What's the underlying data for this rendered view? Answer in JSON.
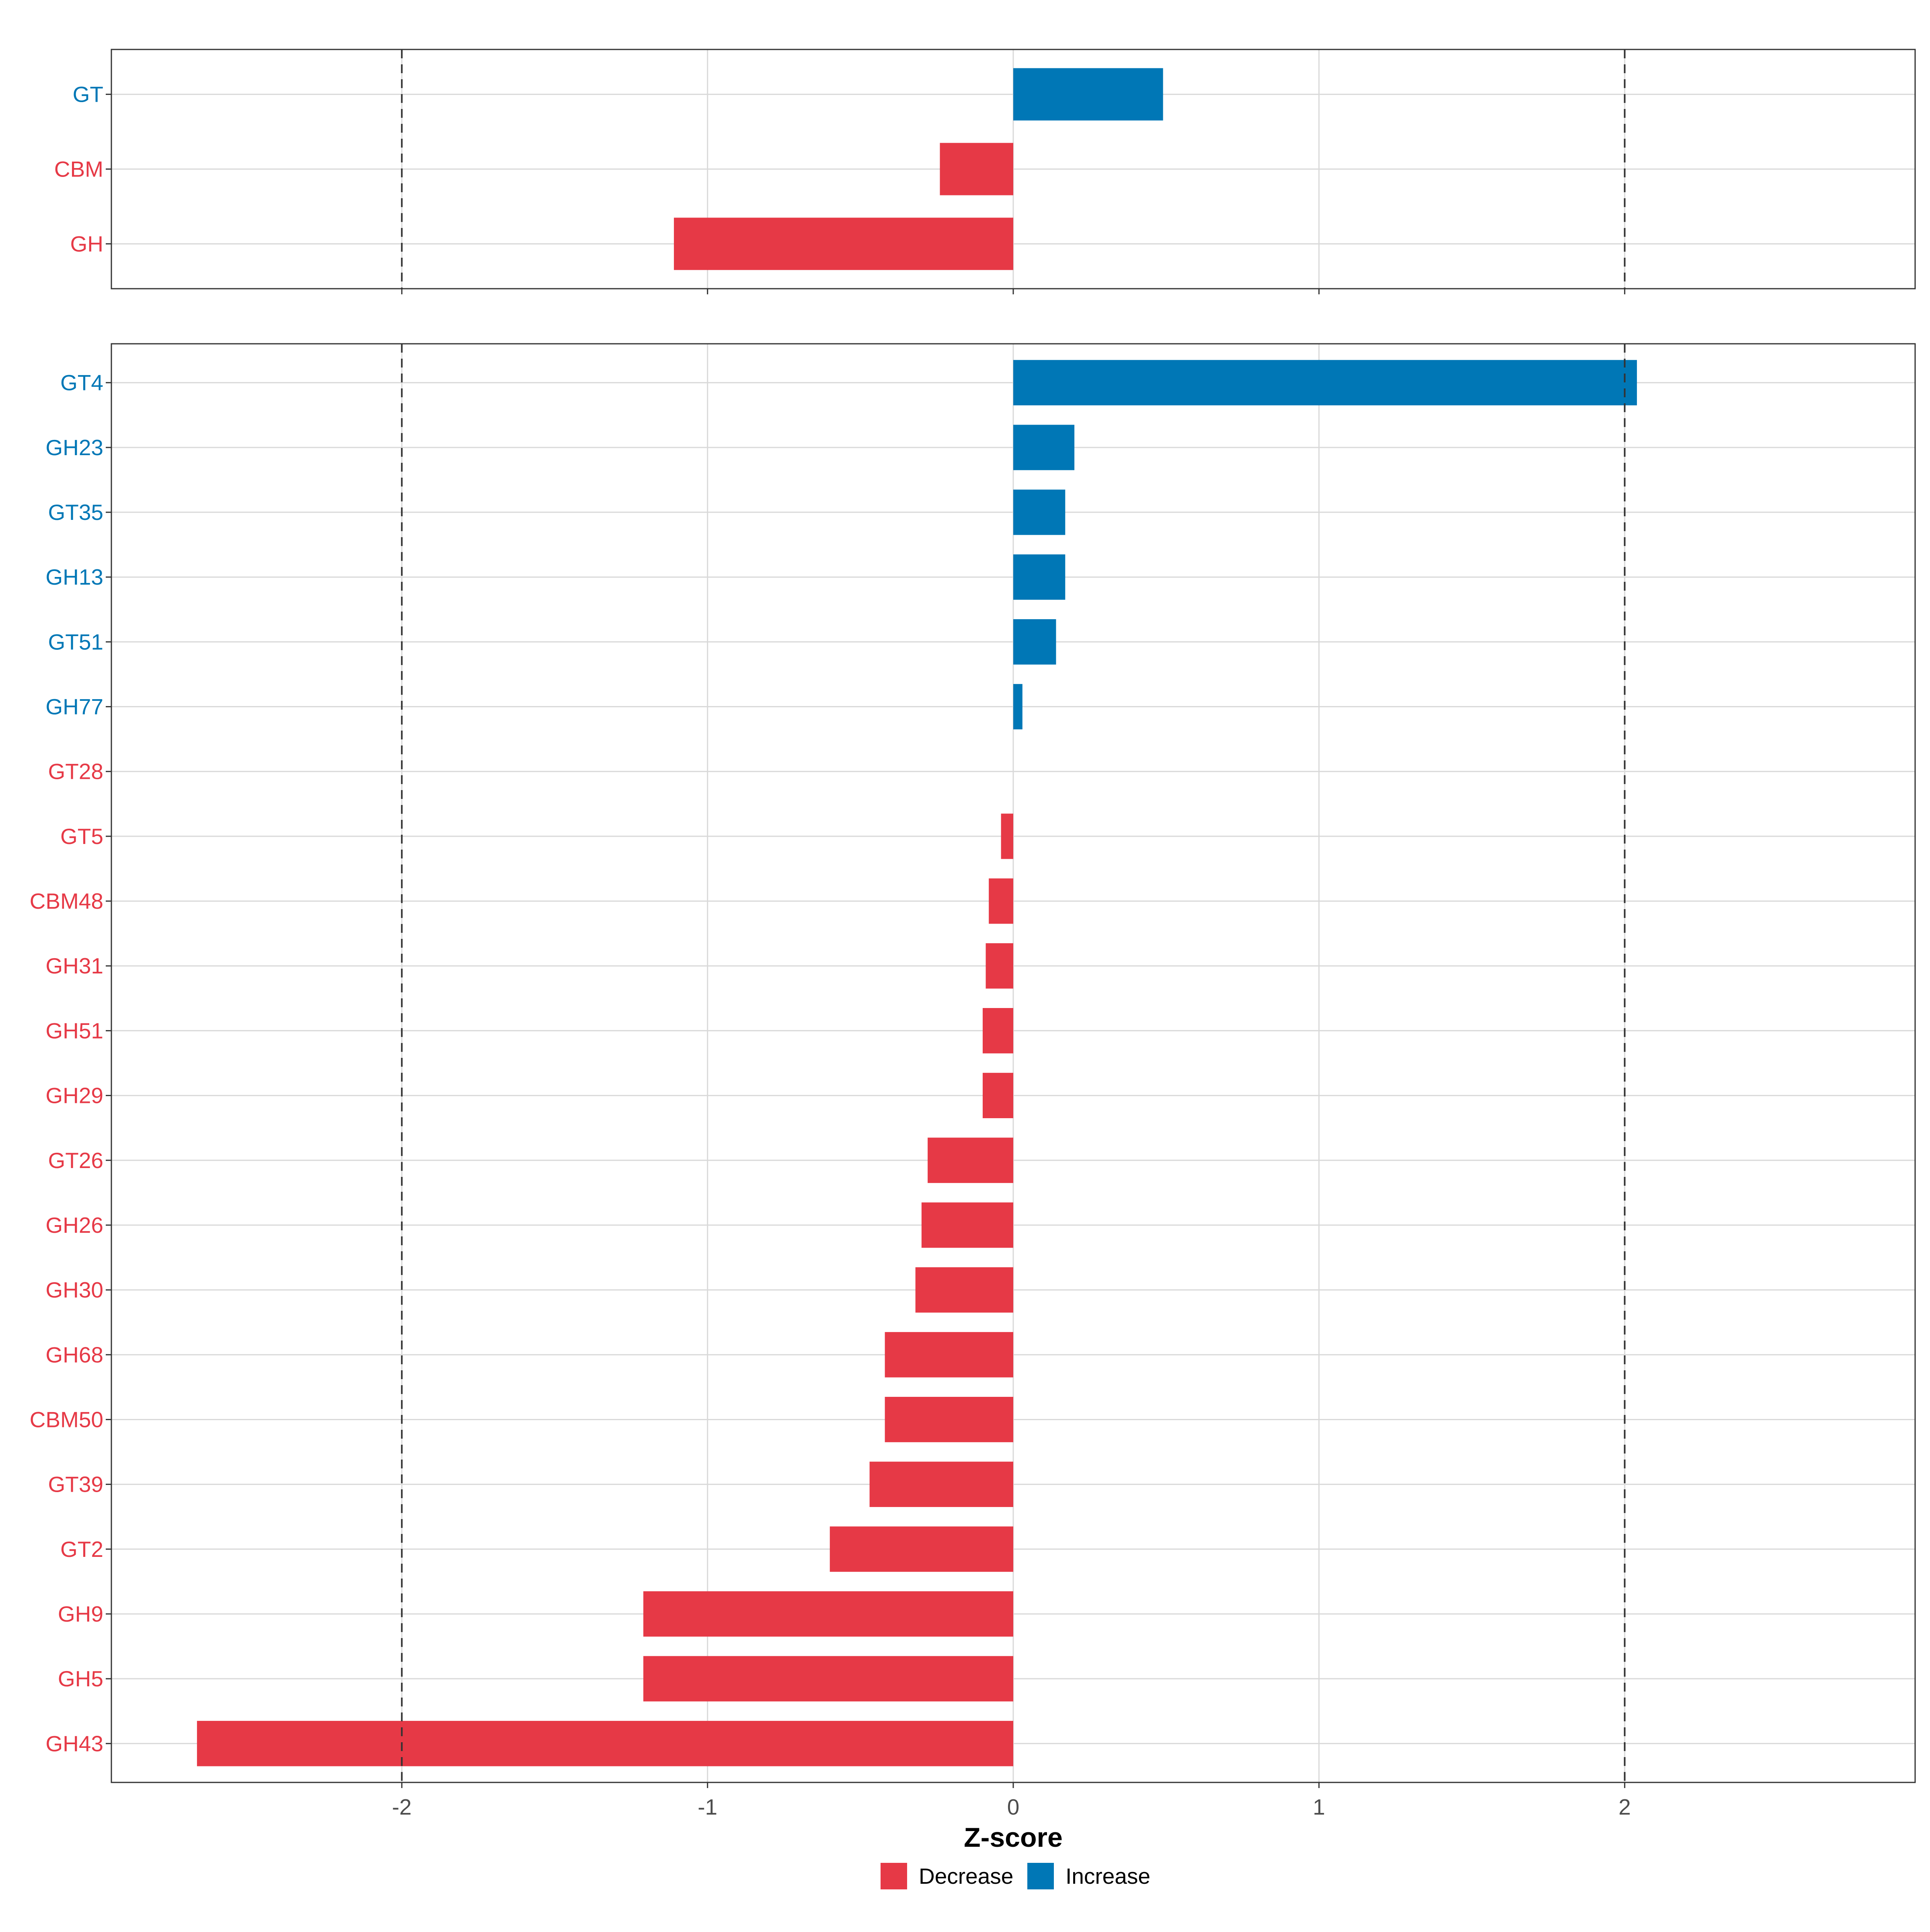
{
  "colors": {
    "decrease": "#E63946",
    "increase": "#0077B6",
    "grid": "#D9D9D9",
    "panel_border": "#333333",
    "reference_line": "#333333",
    "axis_text": "#4D4D4D"
  },
  "chart_data": {
    "type": "bar",
    "orientation": "horizontal",
    "title": "",
    "xlabel": "Z-score",
    "ylabel": "",
    "xlim": [
      -2.95,
      2.95
    ],
    "x_ticks": [
      -2,
      -1,
      0,
      1,
      2
    ],
    "reference_lines": [
      -2,
      2
    ],
    "grid": true,
    "legend": {
      "position": "bottom",
      "entries": [
        {
          "key": "decrease",
          "label": "Decrease"
        },
        {
          "key": "increase",
          "label": "Increase"
        }
      ]
    },
    "panels": [
      {
        "categories": [
          "GT",
          "CBM",
          "GH"
        ],
        "values": [
          0.49,
          -0.24,
          -1.11
        ],
        "groups": [
          "increase",
          "decrease",
          "decrease"
        ]
      },
      {
        "categories": [
          "GT4",
          "GH23",
          "GT35",
          "GH13",
          "GT51",
          "GH77",
          "GT28",
          "GT5",
          "CBM48",
          "GH31",
          "GH51",
          "GH29",
          "GT26",
          "GH26",
          "GH30",
          "GH68",
          "CBM50",
          "GT39",
          "GT2",
          "GH9",
          "GH5",
          "GH43"
        ],
        "values": [
          2.04,
          0.2,
          0.17,
          0.17,
          0.14,
          0.03,
          0.0,
          -0.04,
          -0.08,
          -0.09,
          -0.1,
          -0.1,
          -0.28,
          -0.3,
          -0.32,
          -0.42,
          -0.42,
          -0.47,
          -0.6,
          -1.21,
          -1.21,
          -2.67
        ],
        "groups": [
          "increase",
          "increase",
          "increase",
          "increase",
          "increase",
          "increase",
          "decrease",
          "decrease",
          "decrease",
          "decrease",
          "decrease",
          "decrease",
          "decrease",
          "decrease",
          "decrease",
          "decrease",
          "decrease",
          "decrease",
          "decrease",
          "decrease",
          "decrease",
          "decrease"
        ]
      }
    ]
  }
}
